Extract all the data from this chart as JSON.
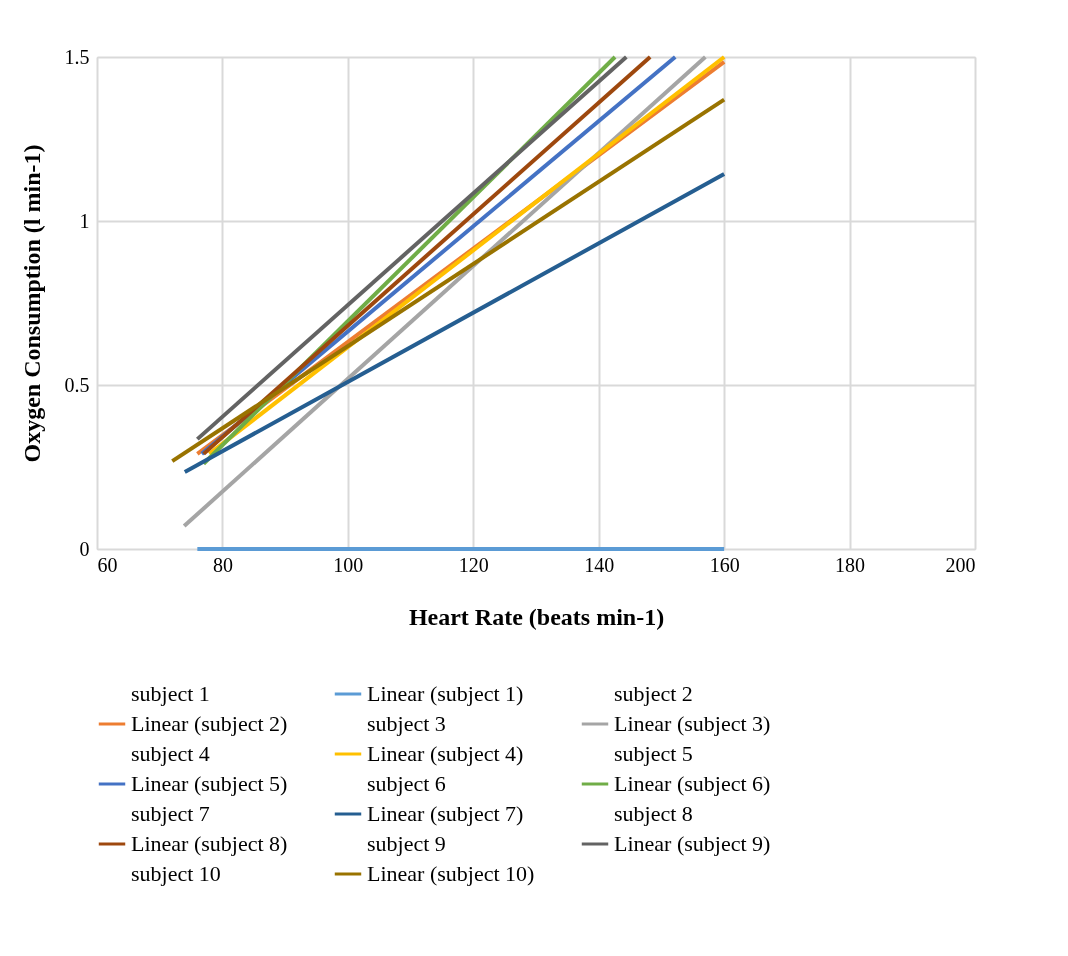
{
  "chart_data": {
    "type": "line",
    "xlabel": "Heart Rate (beats min-1)",
    "ylabel": "Oxygen Consumption (l min-1)",
    "xlim": [
      60,
      200
    ],
    "xticks": [
      60,
      80,
      100,
      120,
      140,
      160,
      180,
      200
    ],
    "ylim": [
      0,
      1.5
    ],
    "yticks": [
      0,
      0.5,
      1,
      1.5
    ],
    "grid": true,
    "legend": "bottom",
    "marker": "none",
    "series": [
      {
        "name": "subject 1",
        "color": null
      },
      {
        "name": "Linear (subject 1)",
        "color": "#5b9bd5",
        "x": [
          76,
          160
        ],
        "values": [
          0,
          0
        ]
      },
      {
        "name": "subject 2",
        "color": null
      },
      {
        "name": "Linear (subject 2)",
        "color": "#ed7d31",
        "x": [
          76,
          160
        ],
        "values": [
          0.29,
          1.485
        ]
      },
      {
        "name": "subject 3",
        "color": null
      },
      {
        "name": "Linear (subject 3)",
        "color": "#a5a5a5",
        "x": [
          73.9,
          157
        ],
        "values": [
          0.07,
          1.5
        ]
      },
      {
        "name": "subject 4",
        "color": null
      },
      {
        "name": "Linear (subject 4)",
        "color": "#ffc000",
        "x": [
          77.9,
          160
        ],
        "values": [
          0.29,
          1.5
        ]
      },
      {
        "name": "subject 5",
        "color": null
      },
      {
        "name": "Linear (subject 5)",
        "color": "#4472c4",
        "x": [
          76.7,
          152.2
        ],
        "values": [
          0.29,
          1.5
        ]
      },
      {
        "name": "subject 6",
        "color": null
      },
      {
        "name": "Linear (subject 6)",
        "color": "#70ad47",
        "x": [
          77,
          142.6
        ],
        "values": [
          0.26,
          1.5
        ]
      },
      {
        "name": "subject 7",
        "color": null
      },
      {
        "name": "Linear (subject 7)",
        "color": "#255e91",
        "x": [
          74,
          160
        ],
        "values": [
          0.235,
          1.143
        ]
      },
      {
        "name": "subject 8",
        "color": null
      },
      {
        "name": "Linear (subject 8)",
        "color": "#9e480e",
        "x": [
          77,
          148.2
        ],
        "values": [
          0.29,
          1.5
        ]
      },
      {
        "name": "subject 9",
        "color": null
      },
      {
        "name": "Linear (subject 9)",
        "color": "#636363",
        "x": [
          76,
          144.4
        ],
        "values": [
          0.335,
          1.5
        ]
      },
      {
        "name": "subject 10",
        "color": null
      },
      {
        "name": "Linear (subject 10)",
        "color": "#997300",
        "x": [
          72,
          160
        ],
        "values": [
          0.268,
          1.37
        ]
      }
    ]
  }
}
